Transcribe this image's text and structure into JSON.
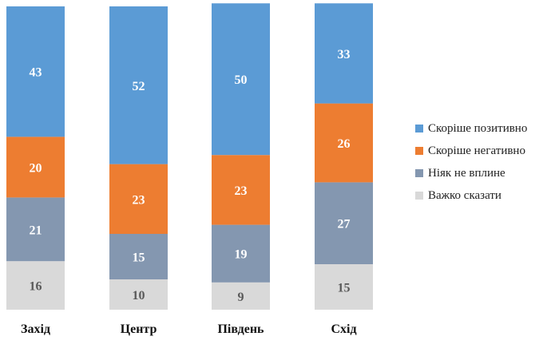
{
  "chart_data": {
    "type": "bar",
    "stacked": true,
    "categories": [
      "Захід",
      "Центр",
      "Південь",
      "Схід"
    ],
    "series": [
      {
        "name": "Скоріше позитивно",
        "color": "#5b9bd5",
        "values": [
          43,
          52,
          50,
          33
        ]
      },
      {
        "name": "Скоріше негативно",
        "color": "#ed7d31",
        "values": [
          20,
          23,
          23,
          26
        ]
      },
      {
        "name": "Ніяк не вплине",
        "color": "#8497b0",
        "values": [
          21,
          15,
          19,
          27
        ]
      },
      {
        "name": "Важко сказати",
        "color": "#d9d9d9",
        "values": [
          16,
          10,
          9,
          15
        ]
      }
    ],
    "label_colors": [
      "#ffffff",
      "#ffffff",
      "#ffffff",
      "#595959"
    ],
    "legend_position": "right",
    "ylim": [
      0,
      100
    ]
  }
}
